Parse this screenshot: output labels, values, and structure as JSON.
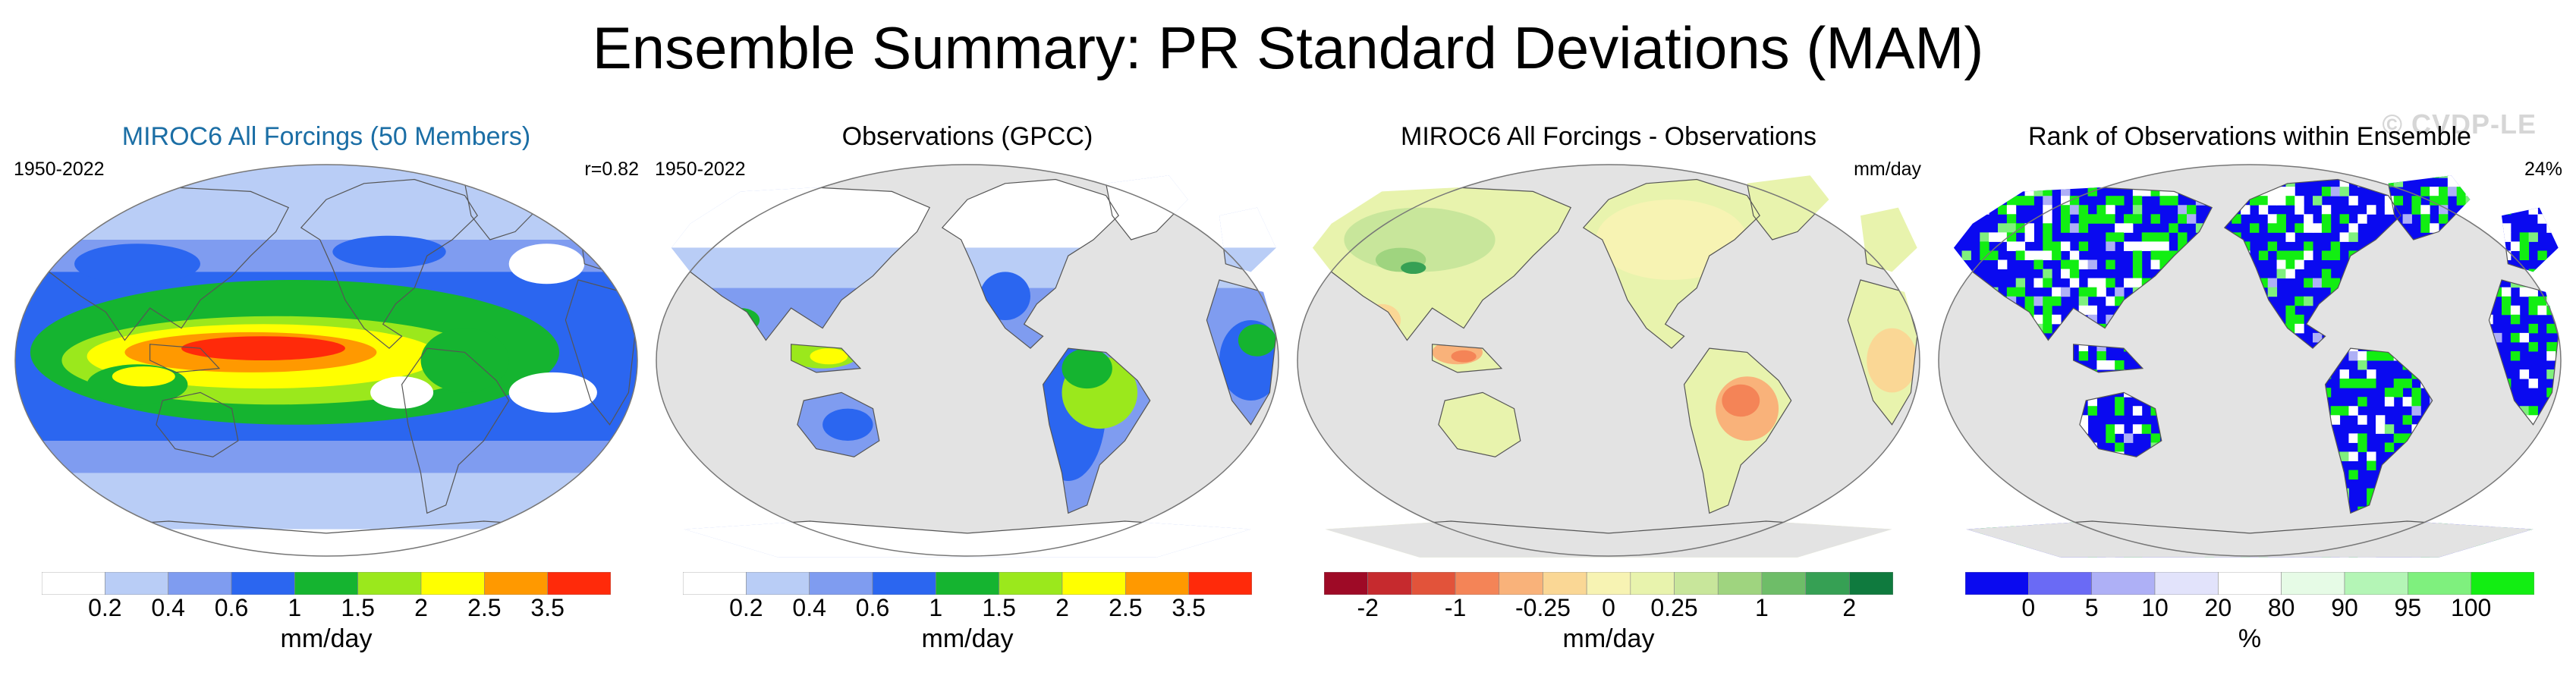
{
  "title": "Ensemble Summary: PR Standard Deviations (MAM)",
  "watermark": "© CVDP-LE",
  "colors": {
    "ocean_land_gray": "#e3e3e3",
    "coast": "#555555",
    "title_blue": "#1b6ea5"
  },
  "panels": [
    {
      "title": "MIROC6 All Forcings (50 Members)",
      "left_label": "1950-2022",
      "right_label": "r=0.82",
      "colorbar_label": "mm/day",
      "colors": [
        "#ffffff",
        "#b9cdf6",
        "#7f9cf0",
        "#2b66f0",
        "#15b430",
        "#9be81c",
        "#ffff00",
        "#ff9900",
        "#ff2a0a"
      ],
      "ticks": [
        "0.2",
        "0.4",
        "0.6",
        "1",
        "1.5",
        "2",
        "2.5",
        "3.5"
      ]
    },
    {
      "title": "Observations (GPCC)",
      "left_label": "1950-2022",
      "right_label": "",
      "colorbar_label": "mm/day",
      "colors": [
        "#ffffff",
        "#b9cdf6",
        "#7f9cf0",
        "#2b66f0",
        "#15b430",
        "#9be81c",
        "#ffff00",
        "#ff9900",
        "#ff2a0a"
      ],
      "ticks": [
        "0.2",
        "0.4",
        "0.6",
        "1",
        "1.5",
        "2",
        "2.5",
        "3.5"
      ]
    },
    {
      "title": "MIROC6 All Forcings - Observations",
      "left_label": "",
      "right_label": "mm/day",
      "colorbar_label": "mm/day",
      "colors": [
        "#9e0a26",
        "#c62a2e",
        "#e2533a",
        "#f48457",
        "#f9b27a",
        "#fad795",
        "#f7f3b3",
        "#e8f3ad",
        "#c8e69b",
        "#9fd47f",
        "#6ebd68",
        "#36a054",
        "#0f7a3e"
      ],
      "ticks": [
        "-2",
        "-1",
        "-0.25",
        "0",
        "0.25",
        "1",
        "2"
      ]
    },
    {
      "title": "Rank of Observations within Ensemble",
      "left_label": "",
      "right_label": "24%",
      "colorbar_label": "%",
      "colors": [
        "#0a0af0",
        "#6a6af5",
        "#aeb0f6",
        "#e2e3fb",
        "#ffffff",
        "#e6fbe6",
        "#b4f5b6",
        "#7ff07e",
        "#12ee12"
      ],
      "ticks": [
        "0",
        "5",
        "10",
        "20",
        "80",
        "90",
        "95",
        "100"
      ]
    }
  ]
}
